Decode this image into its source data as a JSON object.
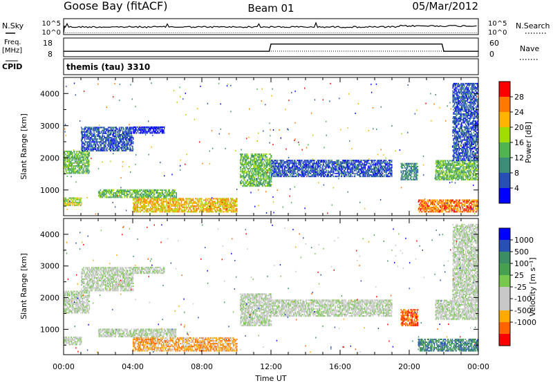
{
  "header": {
    "station": "Goose Bay (fitACF)",
    "beam": "Beam 01",
    "date": "05/Mar/2012"
  },
  "nsky_panel": {
    "left_label": "N.Sky",
    "right_label": "N.Search",
    "left_ticks": [
      "10^5",
      "10^0"
    ],
    "right_ticks": [
      "10^5",
      "10^0"
    ]
  },
  "freq_panel": {
    "left_label_line1": "Freq.",
    "left_label_line2": "[MHz]",
    "right_label": "Nave",
    "left_ticks": [
      "18",
      "8"
    ],
    "right_ticks": [
      "60",
      "0"
    ]
  },
  "cpid_panel": {
    "left_label": "CPID",
    "value": "themis (tau) 3310"
  },
  "power_panel": {
    "ylabel": "Slant Range [km]",
    "yticks": [
      "4000",
      "3000",
      "2000",
      "1000"
    ],
    "colorbar_label": "Power [dB]",
    "colorbar_ticks": [
      "28",
      "24",
      "20",
      "16",
      "12",
      "8",
      "4"
    ],
    "colors": [
      "#0000ff",
      "#2850b4",
      "#3c8c78",
      "#50b450",
      "#a0dc00",
      "#ffb400",
      "#ff7800",
      "#ff0000"
    ]
  },
  "velocity_panel": {
    "ylabel": "Slant Range [km]",
    "yticks": [
      "4000",
      "3000",
      "2000",
      "1000"
    ],
    "colorbar_label": "Velocity [m s⁻¹]",
    "colorbar_ticks": [
      "1000",
      "500",
      "100",
      "25",
      "-25",
      "-100",
      "-500",
      "-1000"
    ],
    "colors": [
      "#ff0000",
      "#ff6400",
      "#ffaa00",
      "#c8c8c8",
      "#c8c8c8",
      "#78c850",
      "#46a050",
      "#3c8c64",
      "#2850b4",
      "#0000ff"
    ]
  },
  "x_axis": {
    "label": "Time UT",
    "ticks": [
      "00:00",
      "04:00",
      "08:00",
      "12:00",
      "16:00",
      "20:00",
      "00:00"
    ]
  },
  "chart_data": {
    "type": "heatmap",
    "x_range_hours": [
      0,
      24
    ],
    "y_range_km": [
      200,
      4500
    ],
    "freq_series_mhz": [
      {
        "x": 0,
        "y": 10.3
      },
      {
        "x": 11.9,
        "y": 10.3
      },
      {
        "x": 12.0,
        "y": 15.3
      },
      {
        "x": 21.9,
        "y": 15.3
      },
      {
        "x": 22.0,
        "y": 10.3
      },
      {
        "x": 24,
        "y": 10.3
      }
    ],
    "power_echo_regions": [
      {
        "t0": 0.0,
        "t1": 1.5,
        "r0": 1500,
        "r1": 2200,
        "level": 3
      },
      {
        "t0": 1.0,
        "t1": 4.0,
        "r0": 2200,
        "r1": 2950,
        "level": 1
      },
      {
        "t0": 4.0,
        "t1": 5.8,
        "r0": 2750,
        "r1": 2950,
        "level": 0
      },
      {
        "t0": 0.0,
        "t1": 1.0,
        "r0": 500,
        "r1": 750,
        "level": 4
      },
      {
        "t0": 2.0,
        "t1": 6.5,
        "r0": 750,
        "r1": 1000,
        "level": 3
      },
      {
        "t0": 4.0,
        "t1": 10.0,
        "r0": 300,
        "r1": 750,
        "level": 5
      },
      {
        "t0": 10.2,
        "t1": 12.0,
        "r0": 1100,
        "r1": 2100,
        "level": 3
      },
      {
        "t0": 12.0,
        "t1": 19.0,
        "r0": 1400,
        "r1": 1900,
        "level": 1
      },
      {
        "t0": 19.5,
        "t1": 20.5,
        "r0": 1300,
        "r1": 1800,
        "level": 2
      },
      {
        "t0": 21.5,
        "t1": 24.0,
        "r0": 1300,
        "r1": 1900,
        "level": 3
      },
      {
        "t0": 20.5,
        "t1": 24.0,
        "r0": 300,
        "r1": 700,
        "level": 6
      },
      {
        "t0": 22.5,
        "t1": 24.0,
        "r0": 1900,
        "r1": 4300,
        "level": 1
      }
    ],
    "velocity_echo_regions": [
      {
        "t0": 0.0,
        "t1": 1.5,
        "r0": 1500,
        "r1": 2200,
        "level": 4
      },
      {
        "t0": 1.0,
        "t1": 4.0,
        "r0": 2200,
        "r1": 2950,
        "level": 4
      },
      {
        "t0": 4.0,
        "t1": 5.8,
        "r0": 2750,
        "r1": 2950,
        "level": 4
      },
      {
        "t0": 0.0,
        "t1": 1.0,
        "r0": 500,
        "r1": 750,
        "level": 4
      },
      {
        "t0": 2.0,
        "t1": 6.5,
        "r0": 750,
        "r1": 1000,
        "level": 4
      },
      {
        "t0": 4.0,
        "t1": 10.0,
        "r0": 300,
        "r1": 750,
        "level": 2
      },
      {
        "t0": 10.2,
        "t1": 12.0,
        "r0": 1100,
        "r1": 2100,
        "level": 4
      },
      {
        "t0": 12.0,
        "t1": 19.0,
        "r0": 1400,
        "r1": 1900,
        "level": 4
      },
      {
        "t0": 19.5,
        "t1": 20.5,
        "r0": 1100,
        "r1": 1600,
        "level": 1
      },
      {
        "t0": 21.5,
        "t1": 24.0,
        "r0": 1300,
        "r1": 1900,
        "level": 4
      },
      {
        "t0": 20.5,
        "t1": 24.0,
        "r0": 300,
        "r1": 700,
        "level": 7
      },
      {
        "t0": 22.5,
        "t1": 24.0,
        "r0": 1900,
        "r1": 4300,
        "level": 4
      }
    ]
  }
}
